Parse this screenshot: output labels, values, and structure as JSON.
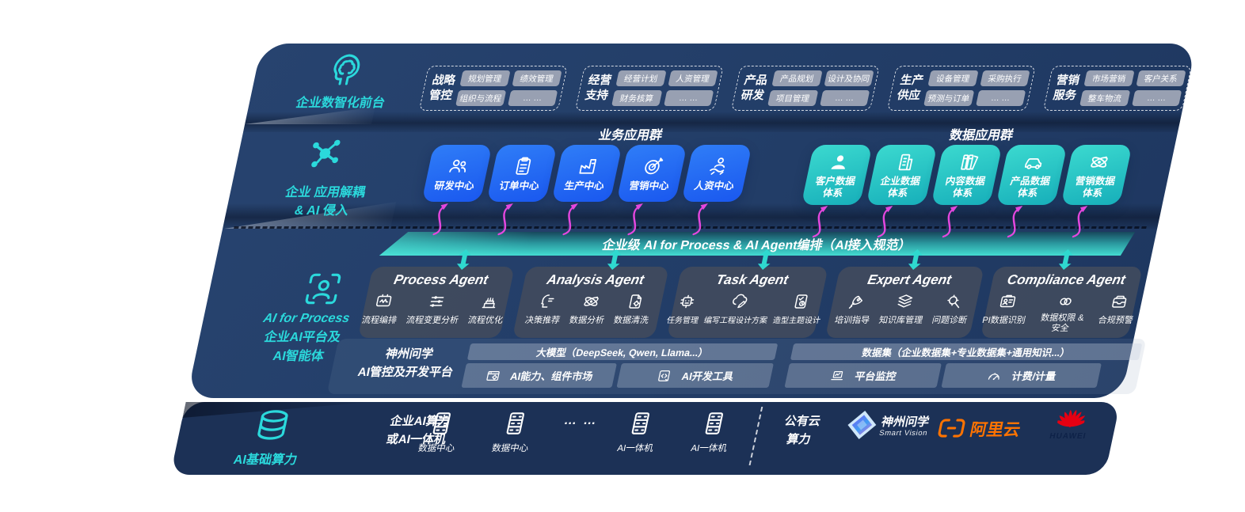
{
  "front_office": {
    "label": "企业数智化前台",
    "groups": [
      {
        "label": [
          "战略",
          "管控"
        ],
        "chips": [
          "规划管理",
          "绩效管理",
          "组织与流程",
          "… …"
        ]
      },
      {
        "label": [
          "经营",
          "支持"
        ],
        "chips": [
          "经营计划",
          "人资管理",
          "财务核算",
          "… …"
        ]
      },
      {
        "label": [
          "产品",
          "研发"
        ],
        "chips": [
          "产品规划",
          "设计及协同",
          "项目管理",
          "… …"
        ]
      },
      {
        "label": [
          "生产",
          "供应"
        ],
        "chips": [
          "设备管理",
          "采购执行",
          "预测与订单",
          "… …"
        ]
      },
      {
        "label": [
          "营销",
          "服务"
        ],
        "chips": [
          "市场营销",
          "客户关系",
          "整车物流",
          "… …"
        ]
      }
    ]
  },
  "decouple": {
    "label": [
      "企业 应用解耦",
      "& AI 侵入"
    ]
  },
  "business_apps": {
    "title": "业务应用群",
    "tiles": [
      {
        "label": "研发中心",
        "icon": "people-icon"
      },
      {
        "label": "订单中心",
        "icon": "clipboard-icon"
      },
      {
        "label": "生产中心",
        "icon": "factory-icon"
      },
      {
        "label": "营销中心",
        "icon": "target-icon"
      },
      {
        "label": "人资中心",
        "icon": "person-wave-icon"
      }
    ]
  },
  "data_apps": {
    "title": "数据应用群",
    "tiles": [
      {
        "label": [
          "客户数据",
          "体系"
        ],
        "icon": "user-icon"
      },
      {
        "label": [
          "企业数据",
          "体系"
        ],
        "icon": "building-icon"
      },
      {
        "label": [
          "内容数据",
          "体系"
        ],
        "icon": "books-icon"
      },
      {
        "label": [
          "产品数据",
          "体系"
        ],
        "icon": "car-icon"
      },
      {
        "label": [
          "营销数据",
          "体系"
        ],
        "icon": "atom-icon"
      }
    ]
  },
  "ribbon": {
    "label": "企业级 AI for Process & AI Agent编排（AI接入规范）"
  },
  "ai_platform": {
    "label": [
      "AI for Process",
      "企业AI平台及",
      "AI智能体"
    ]
  },
  "agents": [
    {
      "title": "Process Agent",
      "items": [
        {
          "label": "流程编排",
          "icon": "monitor-flow-icon"
        },
        {
          "label": "流程变更分析",
          "icon": "sliders-icon"
        },
        {
          "label": "流程优化",
          "icon": "layer-cake-icon"
        }
      ]
    },
    {
      "title": "Analysis Agent",
      "items": [
        {
          "label": "决策推荐",
          "icon": "head-chat-icon"
        },
        {
          "label": "数据分析",
          "icon": "atom-icon"
        },
        {
          "label": "数据清洗",
          "icon": "doc-gear-icon"
        }
      ]
    },
    {
      "title": "Task Agent",
      "items": [
        {
          "label": "任务管理",
          "icon": "robot-icon"
        },
        {
          "label": "编写工程设计方案",
          "icon": "cloud-pen-icon"
        },
        {
          "label": "造型主题设计",
          "icon": "tablet-check-icon"
        }
      ]
    },
    {
      "title": "Expert Agent",
      "items": [
        {
          "label": "培训指导",
          "icon": "rocket-icon"
        },
        {
          "label": "知识库管理",
          "icon": "layers-icon"
        },
        {
          "label": "问题诊断",
          "icon": "magnifier-icon"
        }
      ]
    },
    {
      "title": "Compliance Agent",
      "items": [
        {
          "label": "PI数据识别",
          "icon": "id-card-icon"
        },
        {
          "label": "数据权限 & 安全",
          "icon": "link-circles-icon"
        },
        {
          "label": "合规预警",
          "icon": "inbox-icon"
        }
      ]
    }
  ],
  "platform": {
    "label": [
      "神州问学",
      "AI管控及开发平台"
    ],
    "model_header": "大模型（DeepSeek, Qwen, Llama...）",
    "model_cells": [
      {
        "label": "AI能力、组件市场",
        "icon": "window-gear-icon"
      },
      {
        "label": "AI开发工具",
        "icon": "code-doc-icon"
      }
    ],
    "data_header": "数据集（企业数据集+专业数据集+通用知识...）",
    "data_cells": [
      {
        "label": "平台监控",
        "icon": "laptop-chart-icon"
      },
      {
        "label": "计费/计量",
        "icon": "gauge-icon"
      }
    ]
  },
  "infra": {
    "label": "AI基础算力",
    "compute_label": [
      "企业AI算力",
      "或AI一体机"
    ],
    "nodes": [
      {
        "label": "数据中心"
      },
      {
        "label": "数据中心"
      },
      {
        "label": "AI一体机"
      },
      {
        "label": "AI一体机"
      }
    ],
    "dots": "… …",
    "public_cloud": [
      "公有云",
      "算力"
    ],
    "vendors": {
      "smart_vision": {
        "name": "神州问学",
        "sub": "Smart Vision"
      },
      "aliyun": {
        "name": "阿里云"
      },
      "huawei": {
        "name": "HUAWEI"
      }
    }
  },
  "colors": {
    "accent_teal": "#2BD9DC",
    "tile_blue": "#1F66F2",
    "tile_teal": "#2EC9C6",
    "magenta": "#E447DE",
    "panel_navy": "#223E68",
    "panel_dark": "#1C3156",
    "ribbon_teal": "#43DCD1",
    "aliyun_orange": "#FF7300",
    "huawei_red": "#E60012"
  }
}
